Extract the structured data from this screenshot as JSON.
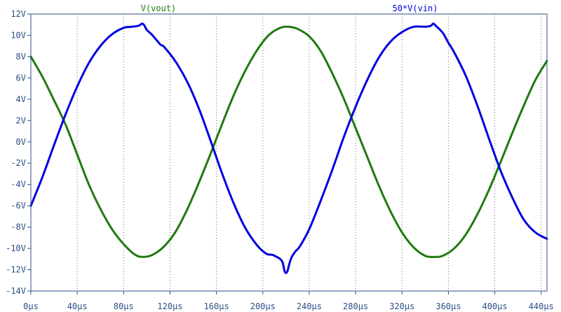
{
  "colors": {
    "background": "#ffffff",
    "axis": "#2b4f86",
    "grid": "#6b6b6b",
    "vout": "#1f7a0f",
    "vin": "#0000e0"
  },
  "chart_data": {
    "type": "line",
    "title": "",
    "xlabel": "",
    "ylabel": "",
    "grid": false,
    "xlim": [
      0,
      445
    ],
    "ylim": [
      -14,
      12
    ],
    "x_ticks": [
      0,
      40,
      80,
      120,
      160,
      200,
      240,
      280,
      320,
      360,
      400,
      440
    ],
    "x_tick_labels": [
      "0µs",
      "40µs",
      "80µs",
      "120µs",
      "160µs",
      "200µs",
      "240µs",
      "280µs",
      "320µs",
      "360µs",
      "400µs",
      "440µs"
    ],
    "y_ticks": [
      12,
      10,
      8,
      6,
      4,
      2,
      0,
      -2,
      -4,
      -6,
      -8,
      -10,
      -12,
      -14
    ],
    "y_tick_labels": [
      "12V",
      "10V",
      "8V",
      "6V",
      "4V",
      "2V",
      "0V",
      "-2V",
      "-4V",
      "-6V",
      "-8V",
      "-10V",
      "-12V",
      "-14V"
    ],
    "series": [
      {
        "name": "V(vout)",
        "color_key": "vout",
        "x": [
          0,
          10,
          20,
          30,
          40,
          50,
          60,
          70,
          80,
          90,
          97,
          105,
          115,
          125,
          135,
          145,
          155,
          165,
          175,
          185,
          195,
          205,
          215,
          222,
          230,
          240,
          250,
          260,
          270,
          280,
          290,
          300,
          310,
          320,
          330,
          340,
          348,
          355,
          365,
          375,
          385,
          395,
          405,
          415,
          425,
          435,
          445
        ],
        "y": [
          8,
          6.1,
          3.9,
          1.6,
          -1.2,
          -4,
          -6.3,
          -8.2,
          -9.6,
          -10.6,
          -10.8,
          -10.6,
          -9.8,
          -8.4,
          -6.3,
          -3.8,
          -1.1,
          1.7,
          4.4,
          6.7,
          8.6,
          10,
          10.7,
          10.8,
          10.6,
          9.9,
          8.5,
          6.4,
          4,
          1.3,
          -1.4,
          -4.1,
          -6.5,
          -8.5,
          -9.9,
          -10.7,
          -10.8,
          -10.7,
          -10,
          -8.7,
          -6.8,
          -4.5,
          -1.9,
          0.8,
          3.4,
          5.8,
          7.6
        ]
      },
      {
        "name": "50*V(vin)",
        "color_key": "vin",
        "x": [
          0,
          10,
          20,
          30,
          40,
          50,
          60,
          70,
          80,
          87,
          93,
          96,
          98,
          100,
          104,
          108,
          112,
          115,
          125,
          135,
          145,
          155,
          165,
          175,
          185,
          195,
          203,
          208,
          212,
          215,
          217,
          219,
          221,
          223,
          225,
          228,
          232,
          240,
          250,
          260,
          270,
          280,
          290,
          300,
          310,
          320,
          330,
          340,
          345,
          347,
          350,
          353,
          356,
          360,
          365,
          375,
          385,
          395,
          405,
          415,
          425,
          435,
          445
        ],
        "y": [
          -6,
          -3.3,
          -0.3,
          2.6,
          5.2,
          7.4,
          9,
          10.1,
          10.7,
          10.8,
          10.9,
          11.1,
          10.9,
          10.5,
          10.1,
          9.6,
          9.1,
          8.9,
          7.5,
          5.6,
          3.1,
          0.1,
          -3,
          -5.8,
          -8.1,
          -9.7,
          -10.5,
          -10.6,
          -10.8,
          -11,
          -11.3,
          -12.2,
          -12.2,
          -11.4,
          -10.8,
          -10.3,
          -9.8,
          -8.2,
          -5.5,
          -2.6,
          0.5,
          3.3,
          5.8,
          7.9,
          9.4,
          10.3,
          10.8,
          10.8,
          10.9,
          11.1,
          10.8,
          10.5,
          10.1,
          9.3,
          8.4,
          6.2,
          3.4,
          0.3,
          -2.7,
          -5.2,
          -7.3,
          -8.5,
          -9.1
        ]
      }
    ]
  }
}
